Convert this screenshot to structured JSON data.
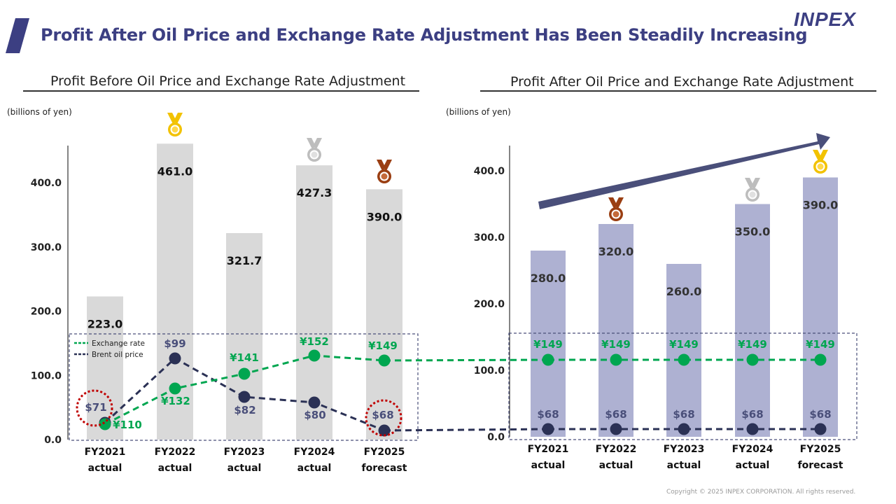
{
  "header": {
    "title": "Profit After Oil Price and Exchange Rate Adjustment Has Been Steadily Increasing",
    "logo": "INPEX",
    "accent_color": "#3c3f82"
  },
  "footer": {
    "copyright": "Copyright © 2025 INPEX CORPORATION. All rights reserved."
  },
  "chart_data": [
    {
      "type": "bar",
      "title": "Profit Before Oil Price and Exchange Rate Adjustment",
      "ylabel": "(billions of yen)",
      "ylim": [
        0,
        480
      ],
      "yticks": [
        "0.0",
        "100.0",
        "200.0",
        "300.0",
        "400.0"
      ],
      "categories": [
        [
          "FY2021",
          "actual"
        ],
        [
          "FY2022",
          "actual"
        ],
        [
          "FY2023",
          "actual"
        ],
        [
          "FY2024",
          "actual"
        ],
        [
          "FY2025",
          "forecast"
        ]
      ],
      "values": [
        223.0,
        461.0,
        321.7,
        427.3,
        390.0
      ],
      "labels": [
        "223.0",
        "461.0",
        "321.7",
        "427.3",
        "390.0"
      ],
      "bar_color": "#d9d9d9",
      "medals": [
        null,
        "gold",
        null,
        "silver",
        "bronze"
      ],
      "legend": [
        "Exchange rate",
        "Brent oil price"
      ],
      "overlay_series": [
        {
          "name": "Exchange rate",
          "color": "#00a650",
          "values": [
            110,
            132,
            141,
            152,
            149
          ],
          "labels": [
            "¥110",
            "¥132",
            "¥141",
            "¥152",
            "¥149"
          ]
        },
        {
          "name": "Brent oil price",
          "color": "#2b3155",
          "values": [
            71,
            99,
            82,
            80,
            68
          ],
          "labels": [
            "$71",
            "$99",
            "$82",
            "$80",
            "$68"
          ]
        }
      ],
      "highlighted": [
        "$71",
        "$68"
      ]
    },
    {
      "type": "bar",
      "title": "Profit After Oil Price and Exchange Rate Adjustment",
      "ylabel": "(billions of yen)",
      "ylim": [
        0,
        420
      ],
      "yticks": [
        "0.0",
        "100.0",
        "200.0",
        "300.0",
        "400.0"
      ],
      "categories": [
        [
          "FY2021",
          "actual"
        ],
        [
          "FY2022",
          "actual"
        ],
        [
          "FY2023",
          "actual"
        ],
        [
          "FY2024",
          "actual"
        ],
        [
          "FY2025",
          "forecast"
        ]
      ],
      "values": [
        280.0,
        320.0,
        260.0,
        350.0,
        390.0
      ],
      "labels": [
        "280.0",
        "320.0",
        "260.0",
        "350.0",
        "390.0"
      ],
      "bar_color": "#aeb1d2",
      "medals": [
        null,
        "bronze",
        null,
        "silver",
        "gold"
      ],
      "overlay_series": [
        {
          "name": "Exchange rate",
          "color": "#00a650",
          "values": [
            149,
            149,
            149,
            149,
            149
          ],
          "labels": [
            "¥149",
            "¥149",
            "¥149",
            "¥149",
            "¥149"
          ]
        },
        {
          "name": "Brent oil price",
          "color": "#2b3155",
          "values": [
            68,
            68,
            68,
            68,
            68
          ],
          "labels": [
            "$68",
            "$68",
            "$68",
            "$68",
            "$68"
          ]
        }
      ],
      "trend_arrow": "up"
    }
  ]
}
